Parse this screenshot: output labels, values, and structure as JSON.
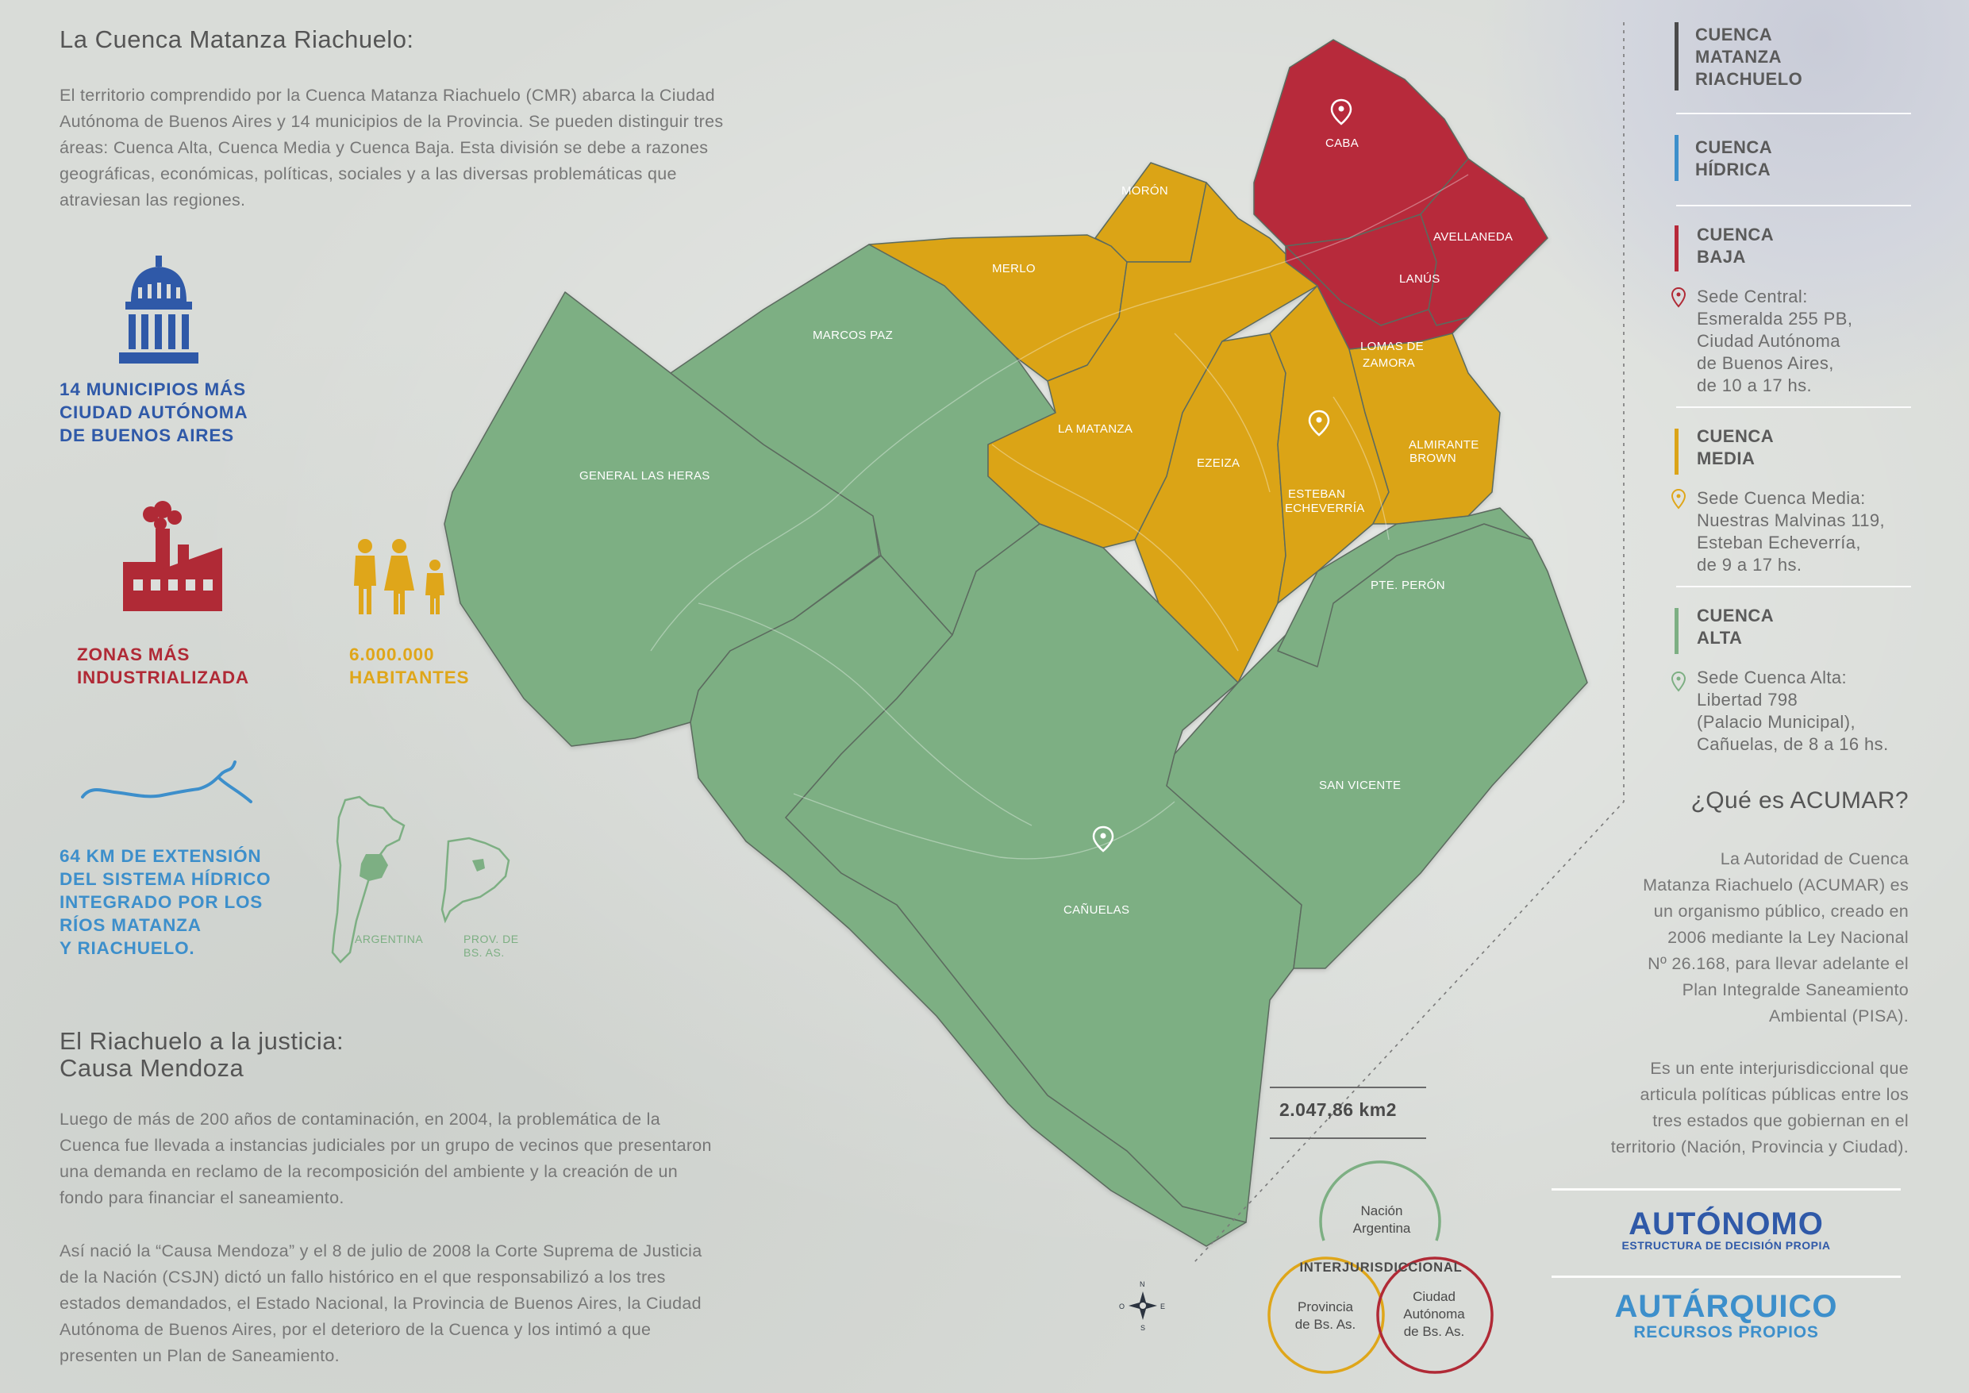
{
  "colors": {
    "alta": "#7daf83",
    "media": "#dba418",
    "baja": "#b7293a",
    "hidrica": "#3d8fcb",
    "cmr": "#4a4a4a",
    "autonomo": "#2f59a8",
    "autarquico": "#3d8fcb"
  },
  "intro": {
    "title": "La Cuenca Matanza Riachuelo:",
    "lines": [
      "El territorio comprendido por la Cuenca Matanza Riachuelo (CMR) abarca la Ciudad",
      "Autónoma de Buenos Aires y 14 municipios de la Provincia. Se pueden distinguir tres",
      "áreas: Cuenca Alta, Cuenca Media y Cuenca Baja. Esta división se debe a razones",
      "geográficas, económicas, políticas, sociales y a las diversas problemáticas que",
      "atraviesan las regiones."
    ]
  },
  "stats": {
    "municipios": [
      "14 MUNICIPIOS MÁS",
      "CIUDAD AUTÓNOMA",
      "DE BUENOS AIRES"
    ],
    "industria": [
      "ZONAS MÁS",
      "INDUSTRIALIZADA"
    ],
    "habitantes": [
      "6.000.000",
      "HABITANTES"
    ],
    "km": [
      "64 KM DE EXTENSIÓN",
      "DEL SISTEMA HÍDRICO",
      "INTEGRADO POR LOS",
      "RÍOS MATANZA",
      "Y RIACHUELO."
    ],
    "argentina_label": "ARGENTINA",
    "provincia_label": [
      "PROV. DE",
      "BS. AS."
    ]
  },
  "justicia": {
    "title": [
      "El Riachuelo a la justicia:",
      "Causa Mendoza"
    ],
    "para1": [
      "Luego de más de 200 años de contaminación, en 2004, la problemática de la",
      "Cuenca fue llevada a instancias judiciales por un grupo de vecinos que presentaron",
      "una demanda en reclamo de la recomposición del ambiente y la creación de un",
      "fondo para financiar el saneamiento."
    ],
    "para2": [
      "Así nació la “Causa Mendoza” y el 8 de julio de 2008 la Corte Suprema de Justicia",
      "de la Nación (CSJN) dictó un fallo histórico en el que responsabilizó a los tres",
      "estados demandados, el Estado Nacional, la Provincia de Buenos Aires, la Ciudad",
      "Autónoma de Buenos Aires, por el deterioro de la Cuenca y los intimó a que",
      "presenten un Plan de Saneamiento."
    ]
  },
  "map": {
    "municipios": {
      "caba": "CABA",
      "avellaneda": "AVELLANEDA",
      "lanus": "LANÚS",
      "lomas": [
        "LOMAS DE",
        "ZAMORA"
      ],
      "almirante": [
        "ALMIRANTE",
        "BROWN"
      ],
      "esteban": [
        "ESTEBAN",
        "ECHEVERRÍA"
      ],
      "ezeiza": "EZEIZA",
      "la_matanza": "LA MATANZA",
      "moron": "MORÓN",
      "merlo": "MERLO",
      "marcos_paz": "MARCOS PAZ",
      "general_las_heras": "GENERAL LAS HERAS",
      "pte_peron": "PTE. PERÓN",
      "san_vicente": "SAN VICENTE",
      "canuelas": "CAÑUELAS"
    },
    "area": "2.047,86 km2",
    "compass": {
      "n": "N",
      "e": "E",
      "s": "S",
      "o": "O"
    }
  },
  "venn": {
    "nacion": [
      "Nación",
      "Argentina"
    ],
    "center": "INTERJURISDICCIONAL",
    "provincia": [
      "Provincia",
      "de Bs. As."
    ],
    "ciudad": [
      "Ciudad",
      "Autónoma",
      "de Bs. As."
    ]
  },
  "legend": {
    "cmr": [
      "CUENCA",
      "MATANZA",
      "RIACHUELO"
    ],
    "hidrica": [
      "CUENCA",
      "HÍDRICA"
    ],
    "baja": [
      "CUENCA",
      "BAJA"
    ],
    "baja_sede": [
      "Sede Central:",
      "Esmeralda 255 PB,",
      "Ciudad Autónoma",
      "de Buenos Aires,",
      "de 10 a 17 hs."
    ],
    "media": [
      "CUENCA",
      "MEDIA"
    ],
    "media_sede": [
      "Sede Cuenca Media:",
      "Nuestras Malvinas 119,",
      "Esteban Echeverría,",
      "de 9 a 17 hs."
    ],
    "alta": [
      "CUENCA",
      "ALTA"
    ],
    "alta_sede": [
      "Sede Cuenca Alta:",
      "Libertad 798",
      "(Palacio Municipal),",
      "Cañuelas, de 8 a 16 hs."
    ]
  },
  "acumar": {
    "title": "¿Qué es ACUMAR?",
    "para1": [
      "La Autoridad de Cuenca",
      "Matanza Riachuelo (ACUMAR) es",
      "un organismo público, creado en",
      "2006 mediante la Ley Nacional",
      "Nº 26.168, para llevar adelante el",
      "Plan Integralde Saneamiento",
      "Ambiental (PISA)."
    ],
    "para2": [
      "Es un ente interjurisdiccional que",
      "articula políticas públicas entre los",
      "tres estados que gobiernan en el",
      "territorio (Nación, Provincia y Ciudad)."
    ],
    "autonomo": "AUTÓNOMO",
    "autonomo_sub": "ESTRUCTURA DE DECISIÓN PROPIA",
    "autarquico": "AUTÁRQUICO",
    "autarquico_sub": "RECURSOS PROPIOS"
  }
}
